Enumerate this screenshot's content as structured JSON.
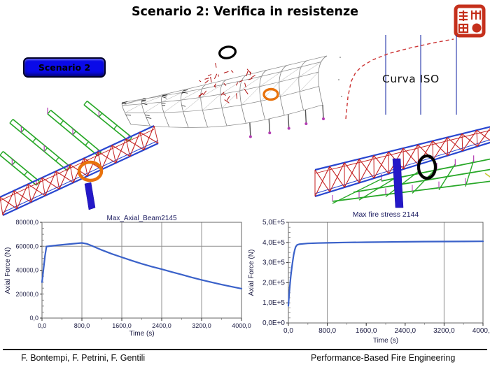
{
  "slide": {
    "title": "Scenario 2: Verifica in resistenze",
    "footer_authors": "F. Bontempi, F. Petrini, F. Gentili",
    "footer_credit": "Performance-Based Fire Engineering"
  },
  "scenario_button": {
    "label": "Scenario 2",
    "bg_color": "#0a0ae8"
  },
  "iso_panel": {
    "label": "Curva ISO",
    "curve_color": "#cc3333",
    "gridline_color": "#2233aa"
  },
  "stamp": {
    "color": "#c5301c"
  },
  "annotations": {
    "roof_black_circle": "#000000",
    "roof_orange_circle": "#e8720c",
    "truss_left_orange_circle": "#e8720c",
    "truss_right_black_circle": "#000000"
  },
  "palette": {
    "truss_chord_blue": "#2846d0",
    "truss_web_red": "#c42020",
    "beam_green": "#28a828",
    "column_blue": "#2418c8",
    "node_magenta": "#b43cb4",
    "wire_gray": "#808080",
    "fire_red": "#b01010",
    "chart_line_blue": "#3a61c9"
  },
  "chart_data": [
    {
      "type": "line",
      "title": "Max_Axial_Beam2145",
      "xlabel": "Time (s)",
      "ylabel": "Axial Force (N)",
      "xlim": [
        0,
        4000
      ],
      "ylim": [
        0,
        80000
      ],
      "xtick_values": [
        0,
        800,
        1600,
        2400,
        3200,
        4000
      ],
      "xtick_labels": [
        "0,0",
        "800,0",
        "1600,0",
        "2400,0",
        "3200,0",
        "4000,0"
      ],
      "ytick_values": [
        0,
        20000,
        40000,
        60000,
        80000
      ],
      "ytick_labels": [
        "0,0",
        "20000,0",
        "40000,0",
        "60000,0",
        "80000,0"
      ],
      "x_minor_step": 400,
      "y_minor_step": 5000,
      "vgrid": [
        800,
        1600,
        2400,
        3200
      ],
      "hgrid": [
        60000
      ],
      "grid": true,
      "legend": "none",
      "line_color": "#3a61c9",
      "x": [
        0,
        30,
        60,
        90,
        150,
        300,
        500,
        700,
        800,
        900,
        1000,
        1200,
        1400,
        1600,
        1800,
        2000,
        2200,
        2400,
        2600,
        2800,
        3000,
        3200,
        3400,
        3600,
        3800,
        4000
      ],
      "y": [
        30000,
        40500,
        52000,
        59800,
        60100,
        60800,
        61600,
        62400,
        62800,
        62000,
        60400,
        56800,
        53600,
        50800,
        48000,
        45400,
        43000,
        40800,
        38500,
        36300,
        34000,
        31900,
        29900,
        28000,
        26200,
        24600
      ]
    },
    {
      "type": "line",
      "title": "Max fire stress 2144",
      "xlabel": "Time (s)",
      "ylabel": "Axial Force (N)",
      "xlim": [
        0,
        4000
      ],
      "ylim": [
        0,
        500000
      ],
      "xtick_values": [
        0,
        800,
        1600,
        2400,
        3200,
        4000
      ],
      "xtick_labels": [
        "0,0",
        "800,0",
        "1600,0",
        "2400,0",
        "3200,0",
        "4000,0"
      ],
      "ytick_values": [
        0,
        100000,
        200000,
        300000,
        400000,
        500000
      ],
      "ytick_labels": [
        "0,0E+0",
        "1,0E+5",
        "2,0E+5",
        "3,0E+5",
        "4,0E+5",
        "5,0E+5"
      ],
      "x_minor_step": 400,
      "y_minor_step": 25000,
      "vgrid": [
        800,
        3200
      ],
      "hgrid": [],
      "grid": true,
      "legend": "none",
      "line_color": "#3a61c9",
      "x": [
        0,
        15,
        30,
        50,
        70,
        90,
        110,
        130,
        150,
        180,
        220,
        300,
        400,
        600,
        800,
        1200,
        1600,
        2000,
        2400,
        2800,
        3200,
        3600,
        4000
      ],
      "y": [
        85000,
        140000,
        185000,
        235000,
        275000,
        310000,
        340000,
        362000,
        378000,
        388000,
        391000,
        393000,
        395000,
        397000,
        398000,
        400000,
        401000,
        402000,
        403000,
        404000,
        404500,
        405000,
        405500
      ]
    },
    {
      "type": "line",
      "title": "Curva ISO",
      "xlabel": "",
      "ylabel": "",
      "xlim": [
        0,
        1
      ],
      "ylim": [
        0,
        1
      ],
      "grid": "vertical-blue",
      "legend": "none",
      "line_color": "#cc3333",
      "x": [
        0,
        0.02,
        0.05,
        0.09,
        0.15,
        0.25,
        0.4,
        0.6,
        0.8,
        1.0
      ],
      "y": [
        0,
        0.28,
        0.47,
        0.58,
        0.66,
        0.74,
        0.82,
        0.89,
        0.95,
        1.0
      ]
    }
  ]
}
